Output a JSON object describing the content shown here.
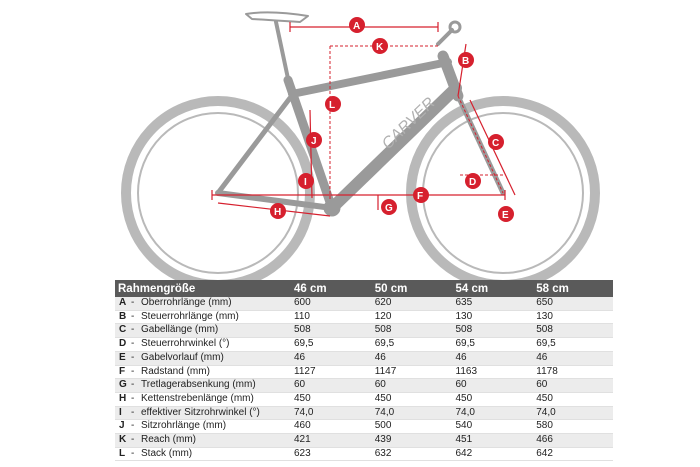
{
  "diagram": {
    "brand": "CARVER",
    "markers": [
      "A",
      "B",
      "C",
      "D",
      "E",
      "F",
      "G",
      "H",
      "I",
      "J",
      "K",
      "L"
    ]
  },
  "table": {
    "header": [
      "Rahmengröße",
      "46 cm",
      "50 cm",
      "54 cm",
      "58 cm"
    ],
    "rows": [
      {
        "code": "A",
        "label": "Oberrohrlänge (mm)",
        "values": [
          "600",
          "620",
          "635",
          "650"
        ]
      },
      {
        "code": "B",
        "label": "Steuerrohrlänge (mm)",
        "values": [
          "110",
          "120",
          "130",
          "130"
        ]
      },
      {
        "code": "C",
        "label": "Gabellänge (mm)",
        "values": [
          "508",
          "508",
          "508",
          "508"
        ]
      },
      {
        "code": "D",
        "label": "Steuerrohrwinkel (°)",
        "values": [
          "69,5",
          "69,5",
          "69,5",
          "69,5"
        ]
      },
      {
        "code": "E",
        "label": "Gabelvorlauf (mm)",
        "values": [
          "46",
          "46",
          "46",
          "46"
        ]
      },
      {
        "code": "F",
        "label": "Radstand (mm)",
        "values": [
          "1127",
          "1147",
          "1163",
          "1178"
        ]
      },
      {
        "code": "G",
        "label": "Tretlagerabsenkung (mm)",
        "values": [
          "60",
          "60",
          "60",
          "60"
        ]
      },
      {
        "code": "H",
        "label": "Kettenstrebenlänge (mm)",
        "values": [
          "450",
          "450",
          "450",
          "450"
        ]
      },
      {
        "code": "I",
        "label": "effektiver Sitzrohrwinkel (°)",
        "values": [
          "74,0",
          "74,0",
          "74,0",
          "74,0"
        ]
      },
      {
        "code": "J",
        "label": "Sitzrohrlänge (mm)",
        "values": [
          "460",
          "500",
          "540",
          "580"
        ]
      },
      {
        "code": "K",
        "label": "Reach (mm)",
        "values": [
          "421",
          "439",
          "451",
          "466"
        ]
      },
      {
        "code": "L",
        "label": "Stack (mm)",
        "values": [
          "623",
          "632",
          "642",
          "642"
        ]
      }
    ]
  }
}
